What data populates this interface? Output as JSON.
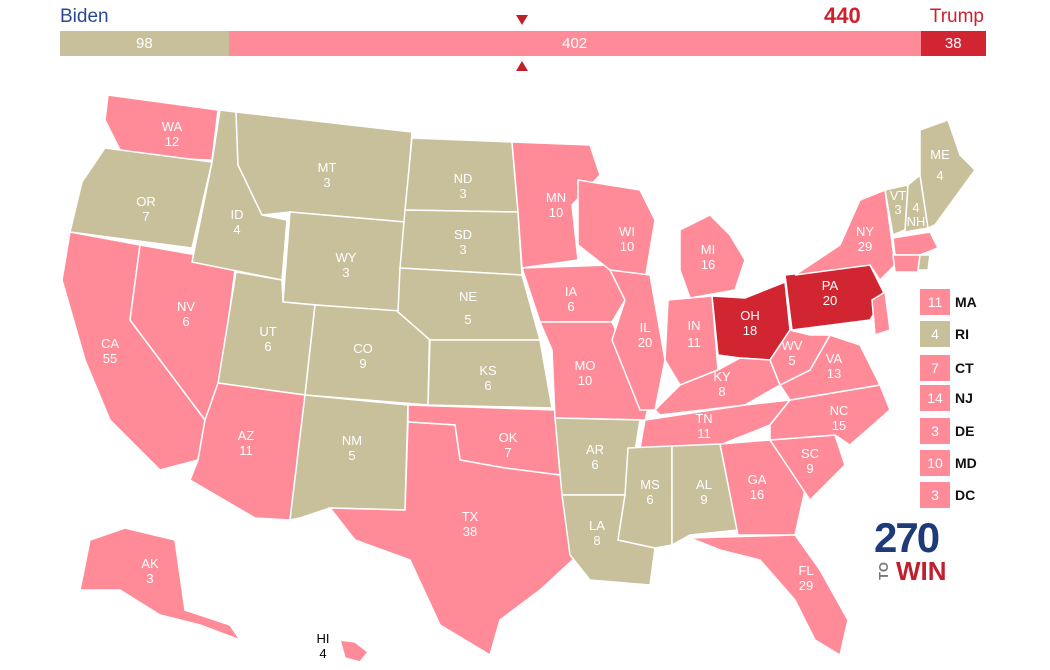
{
  "header": {
    "biden_label": "Biden",
    "trump_label": "Trump",
    "trump_total": "440"
  },
  "bar": [
    {
      "label": "98",
      "votes": 98,
      "color": "#c8bf9b"
    },
    {
      "label": "402",
      "votes": 402,
      "color": "#ff8b98"
    },
    {
      "label": "38",
      "votes": 38,
      "color": "#d22532"
    }
  ],
  "colors": {
    "toss_up": "#c8bf9b",
    "lean_trump": "#ff8b98",
    "safe_trump": "#d22532",
    "marker": "#c0202a"
  },
  "states": [
    {
      "abbr": "WA",
      "votes": "12",
      "rating": "lean_trump"
    },
    {
      "abbr": "OR",
      "votes": "7",
      "rating": "toss_up"
    },
    {
      "abbr": "CA",
      "votes": "55",
      "rating": "lean_trump"
    },
    {
      "abbr": "NV",
      "votes": "6",
      "rating": "lean_trump"
    },
    {
      "abbr": "ID",
      "votes": "4",
      "rating": "toss_up"
    },
    {
      "abbr": "MT",
      "votes": "3",
      "rating": "toss_up"
    },
    {
      "abbr": "WY",
      "votes": "3",
      "rating": "toss_up"
    },
    {
      "abbr": "UT",
      "votes": "6",
      "rating": "toss_up"
    },
    {
      "abbr": "AZ",
      "votes": "11",
      "rating": "lean_trump"
    },
    {
      "abbr": "CO",
      "votes": "9",
      "rating": "toss_up"
    },
    {
      "abbr": "NM",
      "votes": "5",
      "rating": "toss_up"
    },
    {
      "abbr": "ND",
      "votes": "3",
      "rating": "toss_up"
    },
    {
      "abbr": "SD",
      "votes": "3",
      "rating": "toss_up"
    },
    {
      "abbr": "NE",
      "votes": "5",
      "rating": "toss_up"
    },
    {
      "abbr": "KS",
      "votes": "6",
      "rating": "toss_up"
    },
    {
      "abbr": "OK",
      "votes": "7",
      "rating": "lean_trump"
    },
    {
      "abbr": "TX",
      "votes": "38",
      "rating": "lean_trump"
    },
    {
      "abbr": "MN",
      "votes": "10",
      "rating": "lean_trump"
    },
    {
      "abbr": "IA",
      "votes": "6",
      "rating": "lean_trump"
    },
    {
      "abbr": "MO",
      "votes": "10",
      "rating": "lean_trump"
    },
    {
      "abbr": "AR",
      "votes": "6",
      "rating": "toss_up"
    },
    {
      "abbr": "LA",
      "votes": "8",
      "rating": "toss_up"
    },
    {
      "abbr": "WI",
      "votes": "10",
      "rating": "lean_trump"
    },
    {
      "abbr": "IL",
      "votes": "20",
      "rating": "lean_trump"
    },
    {
      "abbr": "MI",
      "votes": "16",
      "rating": "lean_trump"
    },
    {
      "abbr": "IN",
      "votes": "11",
      "rating": "lean_trump"
    },
    {
      "abbr": "OH",
      "votes": "18",
      "rating": "safe_trump"
    },
    {
      "abbr": "KY",
      "votes": "8",
      "rating": "lean_trump"
    },
    {
      "abbr": "TN",
      "votes": "11",
      "rating": "lean_trump"
    },
    {
      "abbr": "MS",
      "votes": "6",
      "rating": "toss_up"
    },
    {
      "abbr": "AL",
      "votes": "9",
      "rating": "toss_up"
    },
    {
      "abbr": "GA",
      "votes": "16",
      "rating": "lean_trump"
    },
    {
      "abbr": "FL",
      "votes": "29",
      "rating": "lean_trump"
    },
    {
      "abbr": "SC",
      "votes": "9",
      "rating": "lean_trump"
    },
    {
      "abbr": "NC",
      "votes": "15",
      "rating": "lean_trump"
    },
    {
      "abbr": "VA",
      "votes": "13",
      "rating": "lean_trump"
    },
    {
      "abbr": "WV",
      "votes": "5",
      "rating": "lean_trump"
    },
    {
      "abbr": "PA",
      "votes": "20",
      "rating": "safe_trump"
    },
    {
      "abbr": "NY",
      "votes": "29",
      "rating": "lean_trump"
    },
    {
      "abbr": "VT",
      "votes": "3",
      "rating": "toss_up"
    },
    {
      "abbr": "NH",
      "votes": "4",
      "rating": "toss_up"
    },
    {
      "abbr": "ME",
      "votes": "4",
      "rating": "toss_up"
    },
    {
      "abbr": "AK",
      "votes": "3",
      "rating": "lean_trump"
    },
    {
      "abbr": "HI",
      "votes": "4",
      "rating": "lean_trump"
    }
  ],
  "small_states": [
    {
      "abbr": "MA",
      "votes": "11",
      "rating": "lean_trump"
    },
    {
      "abbr": "RI",
      "votes": "4",
      "rating": "toss_up"
    },
    {
      "abbr": "CT",
      "votes": "7",
      "rating": "lean_trump"
    },
    {
      "abbr": "NJ",
      "votes": "14",
      "rating": "lean_trump"
    },
    {
      "abbr": "DE",
      "votes": "3",
      "rating": "lean_trump"
    },
    {
      "abbr": "MD",
      "votes": "10",
      "rating": "lean_trump"
    },
    {
      "abbr": "DC",
      "votes": "3",
      "rating": "lean_trump"
    }
  ],
  "logo": {
    "number": "270",
    "to": "TO",
    "win": "WIN"
  }
}
